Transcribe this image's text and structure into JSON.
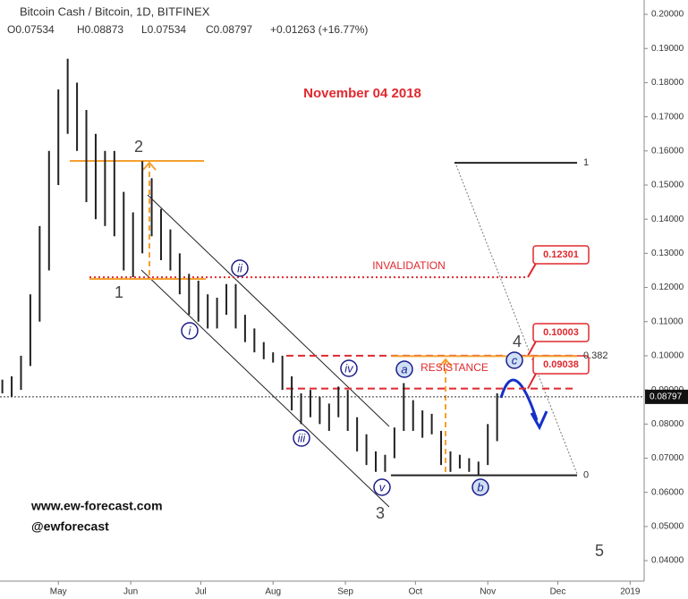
{
  "header": {
    "title": "Bitcoin Cash / Bitcoin, 1D, BITFINEX",
    "ohlc": [
      "O0.07534",
      "H0.08873",
      "L0.07534",
      "C0.08797",
      "+0.01263 (+16.77%)"
    ]
  },
  "chart_data": {
    "type": "range_bar",
    "date_note": "November 04 2018",
    "x": [
      -24,
      -20,
      -16,
      -12,
      -8,
      -4,
      0,
      4,
      8,
      12,
      16,
      20,
      24,
      28,
      32,
      36,
      40,
      44,
      48,
      52,
      56,
      60,
      64,
      68,
      72,
      76,
      80,
      84,
      88,
      92,
      96,
      100,
      104,
      108,
      112,
      116,
      120,
      124,
      128,
      132,
      136,
      140,
      144,
      148,
      152,
      156,
      160,
      164,
      168,
      172,
      176,
      180,
      184,
      188
    ],
    "low": [
      0.089,
      0.088,
      0.09,
      0.097,
      0.11,
      0.125,
      0.15,
      0.165,
      0.16,
      0.145,
      0.14,
      0.138,
      0.135,
      0.125,
      0.123,
      0.13,
      0.135,
      0.128,
      0.125,
      0.118,
      0.112,
      0.11,
      0.108,
      0.108,
      0.112,
      0.108,
      0.104,
      0.101,
      0.099,
      0.098,
      0.09,
      0.084,
      0.08,
      0.082,
      0.08,
      0.078,
      0.082,
      0.078,
      0.072,
      0.068,
      0.066,
      0.066,
      0.07,
      0.078,
      0.078,
      0.076,
      0.077,
      0.068,
      0.066,
      0.067,
      0.066,
      0.065,
      0.068,
      0.075
    ],
    "high": [
      0.093,
      0.094,
      0.1,
      0.118,
      0.138,
      0.16,
      0.178,
      0.187,
      0.18,
      0.172,
      0.165,
      0.16,
      0.16,
      0.148,
      0.142,
      0.157,
      0.152,
      0.143,
      0.137,
      0.13,
      0.124,
      0.122,
      0.118,
      0.117,
      0.121,
      0.121,
      0.112,
      0.108,
      0.104,
      0.101,
      0.1,
      0.094,
      0.089,
      0.09,
      0.088,
      0.086,
      0.091,
      0.09,
      0.082,
      0.077,
      0.072,
      0.071,
      0.079,
      0.092,
      0.087,
      0.084,
      0.083,
      0.078,
      0.072,
      0.071,
      0.07,
      0.069,
      0.08,
      0.089
    ],
    "color": "#222",
    "xlim": [
      -25,
      251
    ],
    "xticks": [
      {
        "value": 0,
        "label": "May"
      },
      {
        "value": 31,
        "label": "Jun"
      },
      {
        "value": 61,
        "label": "Jul"
      },
      {
        "value": 92,
        "label": "Aug"
      },
      {
        "value": 123,
        "label": "Sep"
      },
      {
        "value": 153,
        "label": "Oct"
      },
      {
        "value": 184,
        "label": "Nov"
      },
      {
        "value": 214,
        "label": "Dec"
      },
      {
        "value": 245,
        "label": "2019"
      }
    ],
    "ylim": [
      0.034,
      0.2042
    ],
    "yticks": [
      {
        "value": 0.04,
        "label": "0.04000"
      },
      {
        "value": 0.05,
        "label": "0.05000"
      },
      {
        "value": 0.06,
        "label": "0.06000"
      },
      {
        "value": 0.07,
        "label": "0.07000"
      },
      {
        "value": 0.08,
        "label": "0.08000"
      },
      {
        "value": 0.09,
        "label": "0.09000"
      },
      {
        "value": 0.1,
        "label": "0.10000"
      },
      {
        "value": 0.11,
        "label": "0.11000"
      },
      {
        "value": 0.12,
        "label": "0.12000"
      },
      {
        "value": 0.13,
        "label": "0.13000"
      },
      {
        "value": 0.14,
        "label": "0.14000"
      },
      {
        "value": 0.15,
        "label": "0.15000"
      },
      {
        "value": 0.16,
        "label": "0.16000"
      },
      {
        "value": 0.17,
        "label": "0.17000"
      },
      {
        "value": 0.18,
        "label": "0.18000"
      },
      {
        "value": 0.19,
        "label": "0.19000"
      },
      {
        "value": 0.2,
        "label": "0.20000"
      }
    ],
    "last_price": 0.08797,
    "price_boxes": [
      0.12301,
      0.10003,
      0.09038
    ],
    "level_labels": [
      "INVALIDATION",
      "RESISTANCE"
    ],
    "fib": [
      {
        "ratio": 1,
        "value": 0.1565
      },
      {
        "ratio": 0.382,
        "value": 0.0999
      },
      {
        "ratio": 0,
        "value": 0.065
      }
    ],
    "wave_labels": [
      "2",
      "1",
      "3",
      "4",
      "5"
    ],
    "sub_wave_labels": [
      "i",
      "ii",
      "iii",
      "iv",
      "v",
      "a",
      "b",
      "c"
    ]
  },
  "footer": [
    "www.ew-forecast.com",
    "@ewforecast"
  ]
}
